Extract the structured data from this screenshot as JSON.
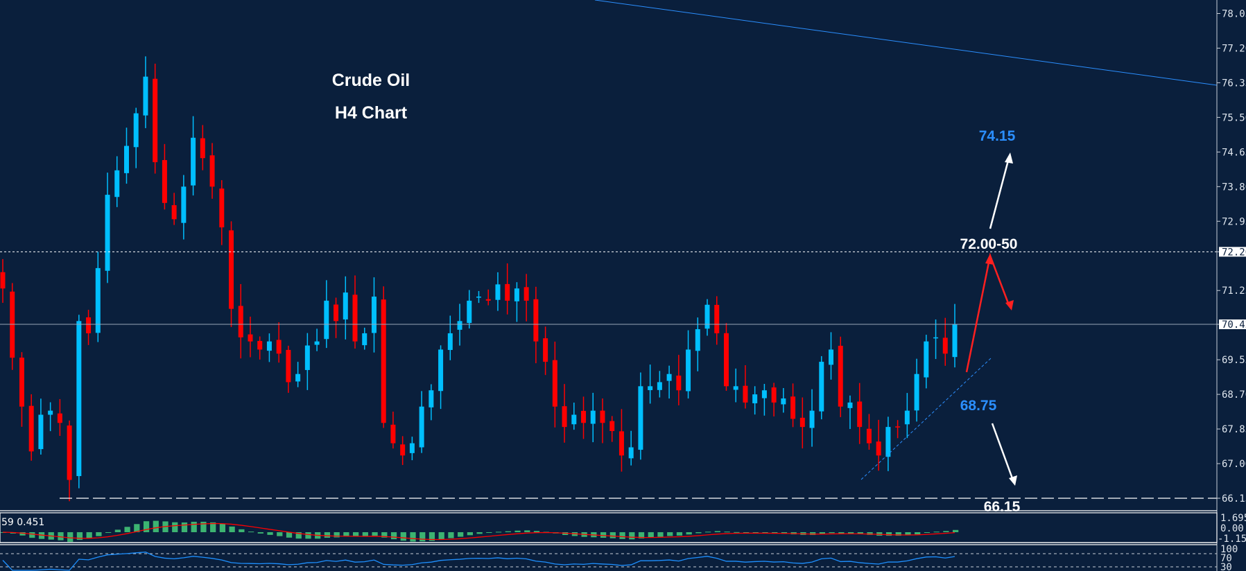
{
  "chart_data": {
    "type": "candlestick",
    "title": "Crude Oil",
    "subtitle": "H4 Chart",
    "y_ticks": [
      "78.05",
      "77.20",
      "76.35",
      "75.50",
      "74.65",
      "73.80",
      "72.95",
      "72.20",
      "71.25",
      "70.42",
      "69.55",
      "68.70",
      "67.85",
      "67.00",
      "66.15"
    ],
    "ylim": [
      66.15,
      78.05
    ],
    "current_price": 70.42,
    "current_price_label": "70.42",
    "resistance_line": 72.2,
    "resistance_label": "72.20",
    "support_line": 66.15,
    "closes": [
      71.3,
      69.6,
      68.4,
      67.3,
      68.2,
      68.3,
      68.0,
      66.6,
      70.5,
      70.2,
      71.8,
      73.6,
      74.2,
      74.8,
      75.6,
      76.5,
      74.4,
      73.4,
      73.0,
      73.8,
      75.0,
      74.5,
      73.8,
      72.8,
      70.8,
      70.1,
      70.0,
      69.8,
      70.0,
      69.7,
      69.0,
      69.2,
      69.9,
      70.0,
      71.0,
      70.5,
      71.2,
      70.0,
      70.2,
      71.1,
      68.0,
      67.5,
      67.2,
      67.5,
      68.4,
      68.8,
      69.8,
      70.2,
      70.5,
      71.0,
      71.1,
      71.0,
      71.4,
      71.0,
      71.3,
      71.0,
      70.0,
      69.5,
      68.4,
      67.9,
      68.2,
      68.0,
      68.3,
      68.0,
      67.8,
      67.2,
      67.4,
      68.9,
      68.9,
      69.0,
      69.2,
      68.8,
      69.8,
      70.3,
      70.9,
      70.2,
      68.9,
      68.9,
      68.5,
      68.7,
      68.8,
      68.5,
      68.6,
      68.1,
      67.9,
      68.3,
      69.5,
      69.8,
      68.4,
      68.5,
      67.9,
      67.5,
      67.2,
      67.9,
      67.9,
      68.3,
      69.2,
      70.0,
      70.1,
      69.7,
      70.42
    ],
    "annotations": {
      "target_up": "74.15",
      "resistance_zone": "72.00-50",
      "support": "68.75",
      "target_down": "66.15"
    },
    "colors": {
      "background": "#0a1f3c",
      "bull": "#00bfff",
      "bear": "#ff0000",
      "annotation_blue": "#2b8fff",
      "histogram": "#3cb371",
      "signal": "#ff0000",
      "rsi": "#1e90ff"
    },
    "macd": {
      "label": "59 0.451",
      "ticks": [
        "1.695",
        "0.00",
        "-1.154"
      ]
    },
    "rsi": {
      "ticks": [
        "100",
        "70",
        "30"
      ]
    }
  }
}
